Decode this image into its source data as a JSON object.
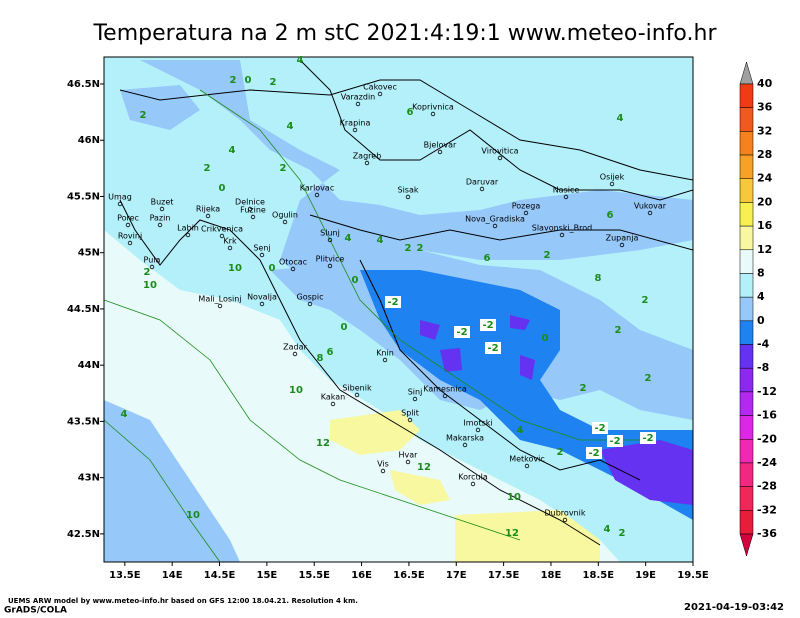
{
  "map": {
    "title": "Temperatura na 2 m stC 2021:4:19:1 www.meteo-info.hr",
    "xlim": [
      13.28,
      19.5
    ],
    "ylim": [
      42.25,
      46.74
    ],
    "xticks": [
      {
        "value": 13.5,
        "label": "13.5E"
      },
      {
        "value": 14,
        "label": "14E"
      },
      {
        "value": 14.5,
        "label": "14.5E"
      },
      {
        "value": 15,
        "label": "15E"
      },
      {
        "value": 15.5,
        "label": "15.5E"
      },
      {
        "value": 16,
        "label": "16E"
      },
      {
        "value": 16.5,
        "label": "16.5E"
      },
      {
        "value": 17,
        "label": "17E"
      },
      {
        "value": 17.5,
        "label": "17.5E"
      },
      {
        "value": 18,
        "label": "18E"
      },
      {
        "value": 18.5,
        "label": "18.5E"
      },
      {
        "value": 19,
        "label": "19E"
      },
      {
        "value": 19.5,
        "label": "19.5E"
      }
    ],
    "yticks": [
      {
        "value": 42.5,
        "label": "42.5N"
      },
      {
        "value": 43,
        "label": "43N"
      },
      {
        "value": 43.5,
        "label": "43.5N"
      },
      {
        "value": 44,
        "label": "44N"
      },
      {
        "value": 44.5,
        "label": "44.5N"
      },
      {
        "value": 45,
        "label": "45N"
      },
      {
        "value": 45.5,
        "label": "45.5N"
      },
      {
        "value": 46,
        "label": "46N"
      },
      {
        "value": 46.5,
        "label": "46.5N"
      }
    ],
    "colorbar": {
      "levels": [
        40,
        36,
        32,
        28,
        24,
        20,
        16,
        12,
        8,
        4,
        0,
        -4,
        -8,
        -12,
        -16,
        -20,
        -24,
        -28,
        -32,
        -36
      ],
      "colors": [
        "#a0a0a0",
        "#f03c14",
        "#f05a1e",
        "#f5821e",
        "#f8a028",
        "#f8c83c",
        "#f8f050",
        "#f8f8a0",
        "#e8fafa",
        "#b4f0fa",
        "#96c8fa",
        "#1e82f0",
        "#6432f0",
        "#8c28f0",
        "#b428f0",
        "#dc28e6",
        "#f028b4",
        "#f02882",
        "#f0285a",
        "#e61e3c",
        "#d2003c"
      ]
    },
    "cities": [
      "Cakovec",
      "Varazdin",
      "Koprivnica",
      "Krapina",
      "Bjelovar",
      "Virovitica",
      "Zagreb",
      "Osijek",
      "Karlovac",
      "Sisak",
      "Daruvar",
      "Nasice",
      "Umag",
      "Buzet",
      "Delnice",
      "Rijeka",
      "Fuzine",
      "Pozega",
      "Vukovar",
      "Porec",
      "Pazin",
      "Ogulin",
      "Nova_Gradiska",
      "Slavonski_Brod",
      "Rovinj",
      "Labin",
      "Crikvenica",
      "Krk",
      "Senj",
      "Slunj",
      "Zupanja",
      "Pula",
      "Otocac",
      "Plitvice",
      "Mali_Losinj",
      "Novalja",
      "Gospic",
      "Zadar",
      "Knin",
      "Sibenik",
      "Kakan",
      "Sinj",
      "Kamesnica",
      "Split",
      "Imotski",
      "Makarska",
      "Hvar",
      "Vis",
      "Korcula",
      "Metkovic",
      "Dubrovnik"
    ],
    "contour_labels": [
      2,
      0,
      2,
      2,
      4,
      4,
      6,
      4,
      2,
      0,
      2,
      2,
      4,
      6,
      8,
      10,
      10,
      0,
      2,
      2,
      -2,
      -2,
      -2,
      -2,
      0,
      0,
      2,
      2,
      4,
      6,
      8,
      10,
      12,
      12,
      -2,
      -2,
      -2,
      -2,
      2,
      4,
      2,
      10,
      12,
      2,
      4,
      6,
      10,
      2,
      0,
      2,
      4,
      4
    ],
    "footer_model": "UEMS ARW model by www.meteo-info.hr based on GFS 12:00 18.04.21. Resolution 4 km.",
    "footer_grads": "GrADS/COLA",
    "footer_time": "2021-04-19-03:42"
  }
}
